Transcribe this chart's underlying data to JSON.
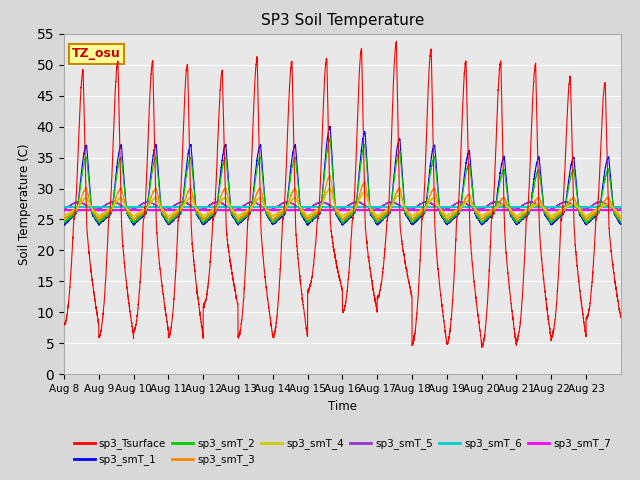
{
  "title": "SP3 Soil Temperature",
  "xlabel": "Time",
  "ylabel": "Soil Temperature (C)",
  "ylim": [
    0,
    55
  ],
  "yticks": [
    0,
    5,
    10,
    15,
    20,
    25,
    30,
    35,
    40,
    45,
    50,
    55
  ],
  "date_labels": [
    "Aug 8",
    "Aug 9",
    "Aug 10",
    "Aug 11",
    "Aug 12",
    "Aug 13",
    "Aug 14",
    "Aug 15",
    "Aug 16",
    "Aug 17",
    "Aug 18",
    "Aug 19",
    "Aug 20",
    "Aug 21",
    "Aug 22",
    "Aug 23"
  ],
  "annotation_text": "TZ_osu",
  "annotation_color": "#cc0000",
  "annotation_bg": "#ffff99",
  "annotation_border": "#cc8800",
  "series_colors": {
    "sp3_Tsurface": "#ff0000",
    "sp3_smT_1": "#0000ff",
    "sp3_smT_2": "#00cc00",
    "sp3_smT_3": "#ff8800",
    "sp3_smT_4": "#cccc00",
    "sp3_smT_5": "#9933cc",
    "sp3_smT_6": "#00cccc",
    "sp3_smT_7": "#ff00ff"
  },
  "bg_color": "#d8d8d8",
  "plot_bg": "#e8e8e8",
  "n_days": 16,
  "surface_daily_max": [
    49,
    50.5,
    50.5,
    50,
    49,
    51,
    50.5,
    51,
    52.5,
    53.5,
    52.5,
    50.5,
    50.5,
    50,
    48,
    47
  ],
  "surface_daily_min_night": [
    8,
    6,
    7,
    6,
    11,
    6,
    6,
    13.5,
    10,
    12.5,
    5,
    5,
    4.5,
    5.5,
    6,
    9
  ],
  "smT1_max": [
    37,
    37,
    37,
    37,
    37,
    37,
    37,
    40,
    39,
    38,
    37,
    36,
    35,
    35,
    35,
    35
  ],
  "smT2_max": [
    35,
    35,
    35,
    35,
    35,
    35,
    35,
    38,
    37,
    36,
    35,
    34,
    33,
    33,
    33,
    33
  ],
  "smT3_max": [
    30,
    30,
    30,
    30,
    30,
    30,
    30,
    32,
    31,
    30,
    30,
    29,
    28.5,
    28.5,
    28.5,
    28.5
  ],
  "smT4_max": [
    28.5,
    28.5,
    28.5,
    28.5,
    28.5,
    28.5,
    28.5,
    30,
    29.5,
    29,
    28.5,
    28,
    27.5,
    27.5,
    27.5,
    27.5
  ],
  "smT5_base": 27.2,
  "smT6_base": 27.0,
  "smT7_base": 26.5
}
